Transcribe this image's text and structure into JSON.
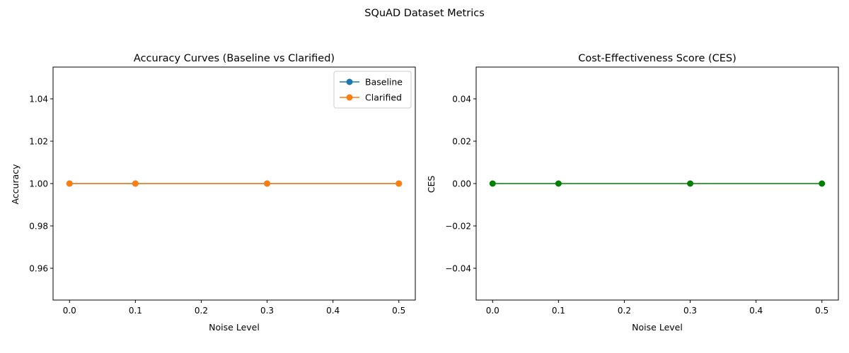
{
  "figure": {
    "suptitle": "SQuAD Dataset Metrics"
  },
  "chart_data": [
    {
      "type": "line",
      "title": "Accuracy Curves (Baseline vs Clarified)",
      "xlabel": "Noise Level",
      "ylabel": "Accuracy",
      "x": [
        0.0,
        0.1,
        0.3,
        0.5
      ],
      "xlim": [
        -0.025,
        0.525
      ],
      "ylim": [
        0.945,
        1.055
      ],
      "xticks": [
        0.0,
        0.1,
        0.2,
        0.3,
        0.4,
        0.5
      ],
      "xtick_labels": [
        "0.0",
        "0.1",
        "0.2",
        "0.3",
        "0.4",
        "0.5"
      ],
      "yticks": [
        0.96,
        0.98,
        1.0,
        1.02,
        1.04
      ],
      "ytick_labels": [
        "0.96",
        "0.98",
        "1.00",
        "1.02",
        "1.04"
      ],
      "grid": false,
      "legend": "top-right",
      "series": [
        {
          "name": "Baseline",
          "values": [
            1.0,
            1.0,
            1.0,
            1.0
          ],
          "color": "#1f77b4",
          "marker": "circle"
        },
        {
          "name": "Clarified",
          "values": [
            1.0,
            1.0,
            1.0,
            1.0
          ],
          "color": "#ff7f0e",
          "marker": "circle"
        }
      ]
    },
    {
      "type": "line",
      "title": "Cost-Effectiveness Score (CES)",
      "xlabel": "Noise Level",
      "ylabel": "CES",
      "x": [
        0.0,
        0.1,
        0.3,
        0.5
      ],
      "xlim": [
        -0.025,
        0.525
      ],
      "ylim": [
        -0.055,
        0.055
      ],
      "xticks": [
        0.0,
        0.1,
        0.2,
        0.3,
        0.4,
        0.5
      ],
      "xtick_labels": [
        "0.0",
        "0.1",
        "0.2",
        "0.3",
        "0.4",
        "0.5"
      ],
      "yticks": [
        -0.04,
        -0.02,
        0.0,
        0.02,
        0.04
      ],
      "ytick_labels": [
        "−0.04",
        "−0.02",
        "0.00",
        "0.02",
        "0.04"
      ],
      "grid": false,
      "legend": "none",
      "series": [
        {
          "values": [
            0.0,
            0.0,
            0.0,
            0.0
          ],
          "color": "#008000",
          "marker": "circle"
        }
      ]
    }
  ]
}
